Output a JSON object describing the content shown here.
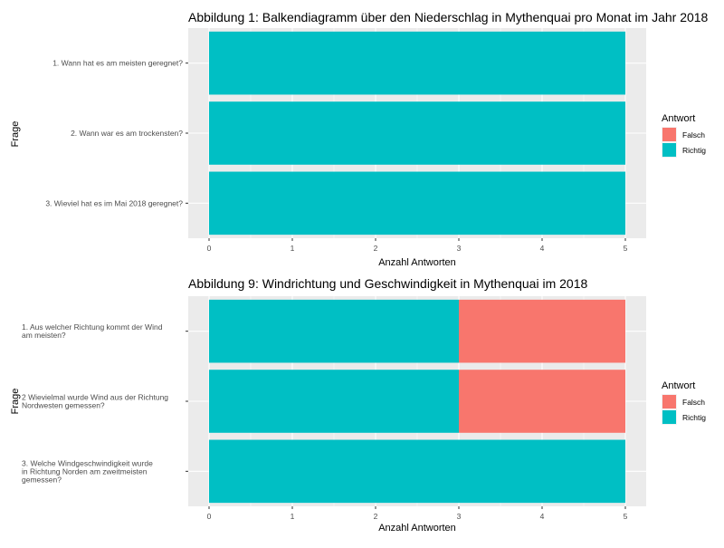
{
  "chart_data": [
    {
      "type": "bar",
      "orientation": "horizontal",
      "stacked": true,
      "title": "Abbildung 1: Balkendiagramm über den Niederschlag in Mythenquai pro Monat im Jahr 2018",
      "xlabel": "Anzahl Antworten",
      "ylabel": "Frage",
      "xlim": [
        0,
        5
      ],
      "xticks": [
        0,
        1,
        2,
        3,
        4,
        5
      ],
      "grid": true,
      "legend_position": "right",
      "categories": [
        [
          "1. Wann hat es am meisten geregnet?"
        ],
        [
          "2. Wann war es am trockensten?"
        ],
        [
          "3. Wieviel hat es im Mai 2018 geregnet?"
        ]
      ],
      "legend_title": "Antwort",
      "series": [
        {
          "name": "Richtig",
          "color": "#00BFC4",
          "values": [
            5,
            5,
            5
          ]
        },
        {
          "name": "Falsch",
          "color": "#F8766D",
          "values": [
            0,
            0,
            0
          ]
        }
      ]
    },
    {
      "type": "bar",
      "orientation": "horizontal",
      "stacked": true,
      "title": "Abbildung 9: Windrichtung und Geschwindigkeit in Mythenquai im 2018",
      "xlabel": "Anzahl Antworten",
      "ylabel": "Frage",
      "xlim": [
        0,
        5
      ],
      "xticks": [
        0,
        1,
        2,
        3,
        4,
        5
      ],
      "grid": true,
      "legend_position": "right",
      "categories": [
        [
          "1. Aus welcher Richtung kommt der Wind",
          "am meisten?"
        ],
        [
          "2 Wievielmal wurde Wind aus der Richtung",
          "Nordwesten gemessen?"
        ],
        [
          "3. Welche Windgeschwindigkeit wurde",
          "in Richtung Norden am zweitmeisten",
          "gemessen?"
        ]
      ],
      "legend_title": "Antwort",
      "series": [
        {
          "name": "Richtig",
          "color": "#00BFC4",
          "values": [
            3,
            3,
            5
          ]
        },
        {
          "name": "Falsch",
          "color": "#F8766D",
          "values": [
            2,
            2,
            0
          ]
        }
      ]
    }
  ]
}
